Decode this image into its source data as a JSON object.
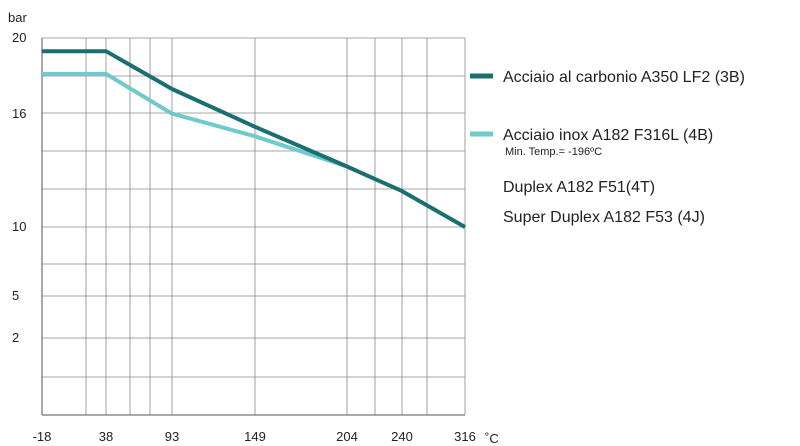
{
  "chart_data": {
    "type": "line",
    "title": "",
    "xlabel": "",
    "ylabel": "",
    "y_unit": "bar",
    "x_unit": "˚C",
    "x_ticks": [
      "-18",
      "38",
      "93",
      "149",
      "204",
      "240",
      "316"
    ],
    "y_ticks": [
      "20",
      "16",
      "10",
      "5",
      "2"
    ],
    "grid": true,
    "legend_position": "right",
    "series": [
      {
        "name": "Acciaio al carbonio A350 LF2 (3B)",
        "color": "#1b6f73",
        "points": [
          [
            -18,
            19.3
          ],
          [
            38,
            19.3
          ],
          [
            93,
            17.3
          ],
          [
            149,
            15.3
          ],
          [
            204,
            13.2
          ],
          [
            240,
            11.9
          ],
          [
            316,
            10
          ]
        ]
      },
      {
        "name": "Acciaio inox A182 F316L (4B)",
        "note": "Min. Temp.= -196ºC",
        "color": "#6fcacb",
        "points": [
          [
            -18,
            18.1
          ],
          [
            38,
            18.1
          ],
          [
            93,
            16.0
          ],
          [
            149,
            14.8
          ],
          [
            204,
            13.2
          ]
        ]
      }
    ],
    "extra_legend": [
      "Duplex A182 F51(4T)",
      "Super Duplex A182 F53 (4J)"
    ]
  }
}
